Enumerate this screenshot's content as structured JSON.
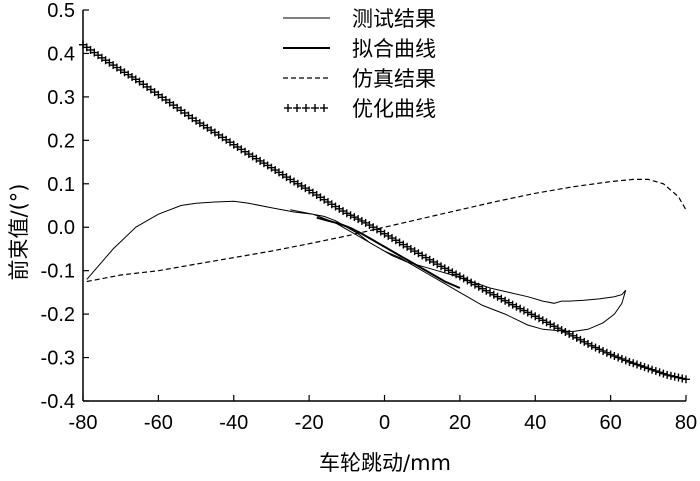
{
  "chart_data": {
    "type": "line",
    "xlabel": "车轮跳动/mm",
    "ylabel": "前束值/(°)",
    "xlim": [
      -80,
      80
    ],
    "ylim": [
      -0.4,
      0.5
    ],
    "xticks": [
      "-80",
      "-60",
      "-40",
      "-20",
      "0",
      "20",
      "40",
      "60",
      "80"
    ],
    "yticks": [
      "-0.4",
      "-0.3",
      "-0.2",
      "-0.1",
      "0.0",
      "0.1",
      "0.2",
      "0.3",
      "0.4",
      "0.5"
    ],
    "legend_position": "top-center",
    "series": [
      {
        "name": "测试结果",
        "style": "thin-solid",
        "x": [
          -79,
          -76,
          -72,
          -66,
          -60,
          -54,
          -50,
          -45,
          -40,
          -36,
          -30,
          -24,
          -19,
          -16,
          -13,
          -10,
          -7,
          -4,
          0,
          4,
          8,
          12,
          16,
          20,
          26,
          32,
          38,
          42,
          46,
          50,
          54,
          58,
          61,
          63,
          64,
          63,
          61,
          57,
          53,
          49,
          47,
          45,
          42,
          38,
          33,
          28,
          23,
          18,
          14,
          10,
          6,
          2,
          -2,
          -6,
          -10,
          -13,
          -16,
          -19,
          -22,
          -25
        ],
        "y": [
          -0.12,
          -0.09,
          -0.05,
          0.0,
          0.03,
          0.05,
          0.055,
          0.058,
          0.06,
          0.055,
          0.045,
          0.035,
          0.03,
          0.025,
          0.015,
          0.0,
          -0.015,
          -0.035,
          -0.055,
          -0.07,
          -0.09,
          -0.11,
          -0.13,
          -0.15,
          -0.18,
          -0.2,
          -0.225,
          -0.235,
          -0.238,
          -0.24,
          -0.235,
          -0.22,
          -0.2,
          -0.175,
          -0.145,
          -0.155,
          -0.16,
          -0.165,
          -0.168,
          -0.17,
          -0.17,
          -0.175,
          -0.17,
          -0.16,
          -0.15,
          -0.14,
          -0.125,
          -0.11,
          -0.1,
          -0.09,
          -0.08,
          -0.065,
          -0.045,
          -0.025,
          -0.005,
          0.01,
          0.02,
          0.03,
          0.035,
          0.04
        ]
      },
      {
        "name": "拟合曲线",
        "style": "thick-solid",
        "x": [
          -18,
          -15,
          -12,
          -9,
          -6,
          -3,
          0,
          4,
          8,
          12,
          16,
          20
        ],
        "y": [
          0.022,
          0.015,
          0.008,
          -0.002,
          -0.015,
          -0.03,
          -0.045,
          -0.065,
          -0.085,
          -0.105,
          -0.125,
          -0.14
        ]
      },
      {
        "name": "仿真结果",
        "style": "dashed",
        "x": [
          -79,
          -76,
          -70,
          -60,
          -50,
          -40,
          -30,
          -20,
          -10,
          0,
          10,
          20,
          30,
          40,
          50,
          60,
          66,
          70,
          74,
          78,
          80
        ],
        "y": [
          -0.125,
          -0.12,
          -0.11,
          -0.1,
          -0.085,
          -0.07,
          -0.055,
          -0.038,
          -0.02,
          0.0,
          0.02,
          0.04,
          0.06,
          0.078,
          0.093,
          0.105,
          0.11,
          0.11,
          0.1,
          0.07,
          0.04
        ]
      },
      {
        "name": "优化曲线",
        "style": "plus-markers",
        "x": [
          -80,
          -75,
          -70,
          -65,
          -60,
          -55,
          -50,
          -45,
          -40,
          -35,
          -30,
          -25,
          -20,
          -15,
          -10,
          -5,
          0,
          5,
          10,
          15,
          20,
          25,
          30,
          35,
          40,
          45,
          50,
          55,
          60,
          65,
          70,
          75,
          80
        ],
        "y": [
          0.42,
          0.39,
          0.362,
          0.335,
          0.305,
          0.275,
          0.245,
          0.218,
          0.19,
          0.163,
          0.137,
          0.11,
          0.085,
          0.058,
          0.032,
          0.01,
          -0.015,
          -0.04,
          -0.065,
          -0.09,
          -0.113,
          -0.137,
          -0.16,
          -0.183,
          -0.205,
          -0.228,
          -0.25,
          -0.273,
          -0.293,
          -0.31,
          -0.325,
          -0.34,
          -0.35
        ]
      }
    ]
  }
}
